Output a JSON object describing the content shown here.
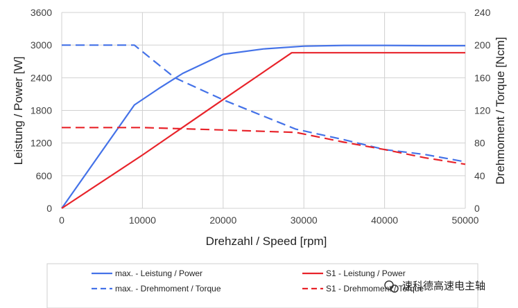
{
  "chart_data": {
    "type": "line",
    "xlabel": "Drehzahl / Speed [rpm]",
    "ylabel_left": "Leistung / Power [W]",
    "ylabel_right": "Drehmoment / Torque [Ncm]",
    "xlim": [
      0,
      50000
    ],
    "ylim_left": [
      0,
      3600
    ],
    "ylim_right": [
      0,
      240
    ],
    "x_ticks": [
      "0",
      "10000",
      "20000",
      "30000",
      "40000",
      "50000"
    ],
    "y_ticks_left": [
      "0",
      "600",
      "1200",
      "1800",
      "2400",
      "3000",
      "3600"
    ],
    "y_ticks_right": [
      "0",
      "40",
      "80",
      "120",
      "160",
      "200",
      "240"
    ],
    "grid": true,
    "legend_position": "bottom",
    "series": [
      {
        "name": "max. - Leistung / Power",
        "axis": "left",
        "dash": "solid",
        "color": "#4472e8",
        "x": [
          0,
          9000,
          12000,
          15000,
          20000,
          25000,
          30000,
          35000,
          40000,
          45000,
          50000
        ],
        "y": [
          0,
          1900,
          2200,
          2480,
          2830,
          2930,
          2980,
          2995,
          2995,
          2990,
          2990
        ]
      },
      {
        "name": "max. - Drehmoment / Torque",
        "axis": "right",
        "dash": "dashed",
        "color": "#4472e8",
        "x": [
          0,
          9000,
          14000,
          20000,
          25000,
          29000,
          35000,
          40000,
          45000,
          50000
        ],
        "y": [
          200,
          200,
          160,
          133,
          113,
          97,
          84,
          72,
          66,
          57
        ]
      },
      {
        "name": "S1 - Leistung / Power",
        "axis": "left",
        "dash": "solid",
        "color": "#e8232a",
        "x": [
          0,
          10000,
          20000,
          28500,
          30000,
          40000,
          50000
        ],
        "y": [
          0,
          980,
          2000,
          2860,
          2860,
          2860,
          2860
        ]
      },
      {
        "name": "S1 - Drehmoment / Torque",
        "axis": "right",
        "dash": "dashed",
        "color": "#e8232a",
        "x": [
          0,
          10000,
          20000,
          29000,
          35000,
          40000,
          45000,
          50000
        ],
        "y": [
          99,
          99,
          96,
          93,
          81,
          72,
          62,
          54
        ]
      }
    ]
  },
  "watermark": {
    "text": "速科德高速电主轴",
    "icon": "wechat-icon"
  }
}
